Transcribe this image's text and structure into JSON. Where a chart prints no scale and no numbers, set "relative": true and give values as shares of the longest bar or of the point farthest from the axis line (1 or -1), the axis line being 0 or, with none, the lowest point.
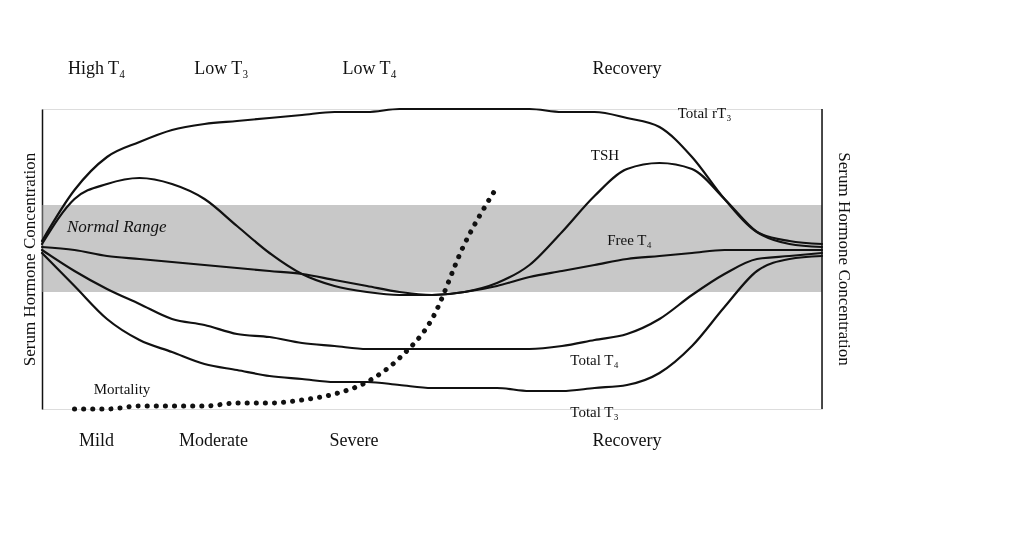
{
  "chart_data": {
    "type": "line",
    "relative": true,
    "ylabel": "Serum Hormone Concentration",
    "y2label": "Serum Hormone Concentration",
    "categories": [
      null,
      null,
      null,
      null,
      null,
      null,
      null,
      null,
      null,
      null,
      null,
      null,
      null,
      null,
      null,
      null,
      null,
      null,
      null,
      null,
      null,
      null,
      null,
      null,
      null
    ],
    "series": [
      {
        "name": "Total rT₃",
        "color": "#111111",
        "line_style": "solid",
        "values": [
          0.56,
          0.73,
          0.84,
          0.89,
          0.93,
          0.95,
          0.96,
          0.97,
          0.98,
          0.99,
          0.99,
          1.0,
          1.0,
          1.0,
          1.0,
          1.0,
          0.99,
          0.99,
          0.97,
          0.94,
          0.84,
          0.7,
          0.59,
          0.56,
          0.55
        ]
      },
      {
        "name": "TSH",
        "color": "#111111",
        "line_style": "solid",
        "values": [
          0.55,
          0.7,
          0.75,
          0.77,
          0.75,
          0.7,
          0.61,
          0.52,
          0.45,
          0.41,
          0.39,
          0.38,
          0.38,
          0.39,
          0.42,
          0.48,
          0.59,
          0.71,
          0.8,
          0.82,
          0.8,
          0.7,
          0.59,
          0.55,
          0.54
        ]
      },
      {
        "name": "Free T₄",
        "color": "#111111",
        "line_style": "solid",
        "values": [
          0.54,
          0.53,
          0.51,
          0.5,
          0.49,
          0.48,
          0.47,
          0.46,
          0.45,
          0.43,
          0.41,
          0.39,
          0.38,
          0.39,
          0.41,
          0.44,
          0.46,
          0.48,
          0.5,
          0.51,
          0.52,
          0.53,
          0.53,
          0.53,
          0.53
        ]
      },
      {
        "name": "Total T₄",
        "color": "#111111",
        "line_style": "solid",
        "values": [
          0.53,
          0.46,
          0.4,
          0.35,
          0.3,
          0.28,
          0.25,
          0.24,
          0.22,
          0.21,
          0.2,
          0.2,
          0.2,
          0.2,
          0.2,
          0.2,
          0.21,
          0.23,
          0.25,
          0.3,
          0.38,
          0.45,
          0.5,
          0.51,
          0.52
        ]
      },
      {
        "name": "Total T₃",
        "color": "#111111",
        "line_style": "solid",
        "values": [
          0.52,
          0.41,
          0.3,
          0.23,
          0.19,
          0.15,
          0.13,
          0.11,
          0.1,
          0.09,
          0.09,
          0.08,
          0.07,
          0.07,
          0.07,
          0.06,
          0.06,
          0.07,
          0.08,
          0.12,
          0.21,
          0.34,
          0.46,
          0.5,
          0.51
        ]
      },
      {
        "name": "Mortality",
        "color": "#111111",
        "line_style": "dotted",
        "values": [
          null,
          0.0,
          0.0,
          0.01,
          0.01,
          0.01,
          0.02,
          0.02,
          0.03,
          0.05,
          0.09,
          0.17,
          0.3,
          0.55,
          0.74,
          null,
          null,
          null,
          null,
          null,
          null,
          null,
          null,
          null,
          null
        ]
      }
    ],
    "bands": [
      {
        "axis": "y",
        "from": 0.39,
        "to": 0.68,
        "label": "Normal Range",
        "color": "#9a9a9a"
      }
    ],
    "annotations": [
      "High T₄",
      "Low T₃",
      "Low T₄",
      "Recovery",
      "Mild",
      "Moderate",
      "Severe",
      "Recovery"
    ]
  }
}
